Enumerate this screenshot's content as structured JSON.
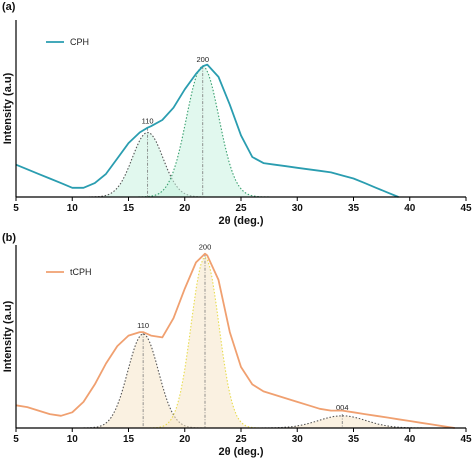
{
  "colors": {
    "cph_line": "#2a9db0",
    "cph_fill": "#c9f2e0",
    "cph_fit": "#3aa070",
    "tcph_line": "#f0a070",
    "tcph_fill": "#f5e6c8",
    "fit_yellow": "#e8dc50",
    "fit_dark": "#555555",
    "marker": "#777777"
  },
  "chart_data": [
    {
      "panel": "(a)",
      "type": "line",
      "xlabel": "2θ (deg.)",
      "ylabel": "Intensity (a.u)",
      "xlim": [
        5,
        45
      ],
      "ylim": [
        0,
        1.15
      ],
      "xticks": [
        5,
        10,
        15,
        20,
        25,
        30,
        35,
        40,
        45
      ],
      "legend": {
        "label": "CPH",
        "position": "top-left"
      },
      "series": [
        {
          "name": "CPH",
          "x": [
            5,
            6,
            7,
            8,
            9,
            10,
            11,
            12,
            13,
            14,
            15,
            16,
            16.7,
            17,
            18,
            19,
            20,
            21,
            21.6,
            22,
            23,
            24,
            25,
            26,
            27,
            28,
            29,
            30,
            31,
            32,
            33,
            34,
            35,
            36,
            37,
            38,
            39
          ],
          "y": [
            0.21,
            0.18,
            0.15,
            0.12,
            0.09,
            0.06,
            0.06,
            0.09,
            0.15,
            0.25,
            0.35,
            0.42,
            0.45,
            0.46,
            0.5,
            0.58,
            0.7,
            0.8,
            0.85,
            0.86,
            0.78,
            0.6,
            0.4,
            0.26,
            0.22,
            0.21,
            0.2,
            0.19,
            0.18,
            0.17,
            0.16,
            0.14,
            0.12,
            0.09,
            0.06,
            0.03,
            0.0
          ]
        }
      ],
      "fits": [
        {
          "name": "",
          "center": 16.7,
          "height": 0.42,
          "width": 3.2,
          "style": "dotted-dark"
        },
        {
          "name": "",
          "center": 21.6,
          "height": 0.85,
          "width": 3.4,
          "style": "dotted-green"
        }
      ],
      "peaks": [
        {
          "label": "110",
          "x": 16.7,
          "y": 0.45
        },
        {
          "label": "200",
          "x": 21.6,
          "y": 0.85
        }
      ]
    },
    {
      "panel": "(b)",
      "type": "line",
      "xlabel": "2θ (deg.)",
      "ylabel": "Intensity (a.u)",
      "xlim": [
        5,
        45
      ],
      "ylim": [
        0,
        1.05
      ],
      "xticks": [
        5,
        10,
        15,
        20,
        25,
        30,
        35,
        40,
        45
      ],
      "legend": {
        "label": "tCPH",
        "position": "top-left"
      },
      "series": [
        {
          "name": "tCPH",
          "x": [
            5,
            6,
            7,
            8,
            9,
            10,
            11,
            12,
            13,
            14,
            15,
            16,
            16.3,
            17,
            18,
            19,
            20,
            21,
            21.8,
            22,
            23,
            24,
            25,
            26,
            27,
            28,
            29,
            30,
            31,
            32,
            33,
            34,
            35,
            36,
            37,
            38,
            39,
            40,
            41,
            42,
            43,
            44
          ],
          "y": [
            0.13,
            0.12,
            0.1,
            0.08,
            0.07,
            0.09,
            0.15,
            0.25,
            0.37,
            0.47,
            0.53,
            0.55,
            0.55,
            0.53,
            0.52,
            0.63,
            0.8,
            0.95,
            1.0,
            0.99,
            0.85,
            0.55,
            0.35,
            0.25,
            0.21,
            0.19,
            0.17,
            0.15,
            0.13,
            0.11,
            0.1,
            0.1,
            0.09,
            0.08,
            0.07,
            0.06,
            0.05,
            0.04,
            0.03,
            0.02,
            0.01,
            0.0
          ]
        }
      ],
      "fits": [
        {
          "name": "",
          "center": 16.3,
          "height": 0.54,
          "width": 3.2,
          "style": "dotted-dark"
        },
        {
          "name": "",
          "center": 21.8,
          "height": 0.98,
          "width": 2.9,
          "style": "dotted-yellow"
        },
        {
          "name": "",
          "center": 34.0,
          "height": 0.07,
          "width": 5.0,
          "style": "dotted-dark"
        }
      ],
      "peaks": [
        {
          "label": "110",
          "x": 16.3,
          "y": 0.55
        },
        {
          "label": "200",
          "x": 21.8,
          "y": 1.0
        },
        {
          "label": "004",
          "x": 34.0,
          "y": 0.08
        }
      ]
    }
  ]
}
